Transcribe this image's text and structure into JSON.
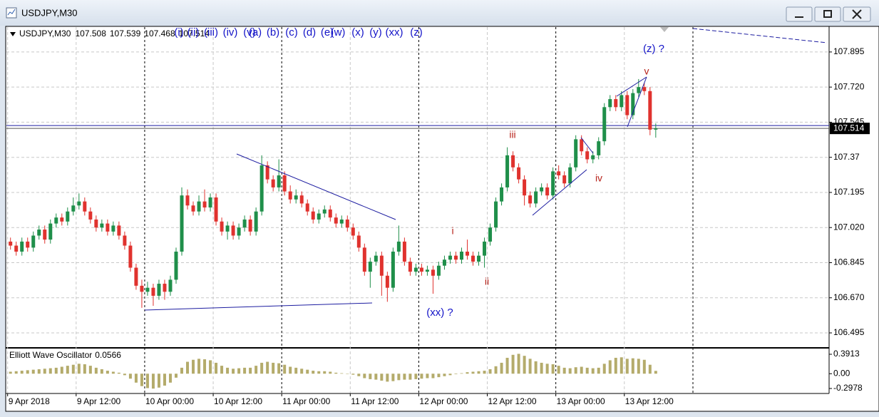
{
  "chart_data": {
    "type": "candlestick",
    "title": "USDJPY,M30",
    "up_color": "#1f8f4a",
    "down_color": "#e0322e",
    "categories": [
      "9 Apr 2018",
      null,
      null,
      null,
      null,
      null,
      null,
      null,
      null,
      null,
      null,
      null,
      "9 Apr 12:00",
      null,
      null,
      null,
      null,
      null,
      null,
      null,
      null,
      null,
      null,
      null,
      "10 Apr 00:00",
      null,
      null,
      null,
      null,
      null,
      null,
      null,
      null,
      null,
      null,
      null,
      "10 Apr 12:00",
      null,
      null,
      null,
      null,
      null,
      null,
      null,
      null,
      null,
      null,
      null,
      "11 Apr 00:00",
      null,
      null,
      null,
      null,
      null,
      null,
      null,
      null,
      null,
      null,
      null,
      "11 Apr 12:00",
      null,
      null,
      null,
      null,
      null,
      null,
      null,
      null,
      null,
      null,
      null,
      "12 Apr 00:00",
      null,
      null,
      null,
      null,
      null,
      null,
      null,
      null,
      null,
      null,
      null,
      "12 Apr 12:00",
      null,
      null,
      null,
      null,
      null,
      null,
      null,
      null,
      null,
      null,
      null,
      "13 Apr 00:00",
      null,
      null,
      null,
      null,
      null,
      null,
      null,
      null,
      null,
      null,
      null,
      "13 Apr 12:00",
      null,
      null,
      null,
      null,
      null
    ],
    "ohlc": [
      [
        106.95,
        106.97,
        106.91,
        106.93
      ],
      [
        106.93,
        106.95,
        106.88,
        106.9
      ],
      [
        106.9,
        106.97,
        106.88,
        106.95
      ],
      [
        106.95,
        106.97,
        106.9,
        106.92
      ],
      [
        106.92,
        107.0,
        106.9,
        106.98
      ],
      [
        106.98,
        107.03,
        106.96,
        107.01
      ],
      [
        107.01,
        107.03,
        106.94,
        106.96
      ],
      [
        106.96,
        107.06,
        106.94,
        107.04
      ],
      [
        107.04,
        107.09,
        107.02,
        107.07
      ],
      [
        107.07,
        107.09,
        107.03,
        107.05
      ],
      [
        107.05,
        107.12,
        107.03,
        107.1
      ],
      [
        107.1,
        107.17,
        107.08,
        107.13
      ],
      [
        107.13,
        107.19,
        107.11,
        107.15
      ],
      [
        107.15,
        107.17,
        107.08,
        107.1
      ],
      [
        107.1,
        107.12,
        107.04,
        107.06
      ],
      [
        107.06,
        107.08,
        107.0,
        107.02
      ],
      [
        107.02,
        107.06,
        107.0,
        107.04
      ],
      [
        107.04,
        107.06,
        106.98,
        107.0
      ],
      [
        107.0,
        107.05,
        106.98,
        107.03
      ],
      [
        107.03,
        107.05,
        106.96,
        106.98
      ],
      [
        106.98,
        107.0,
        106.91,
        106.93
      ],
      [
        106.93,
        106.95,
        106.8,
        106.82
      ],
      [
        106.82,
        106.84,
        106.71,
        106.73
      ],
      [
        106.73,
        106.76,
        106.62,
        106.7
      ],
      [
        106.7,
        106.75,
        106.68,
        106.72
      ],
      [
        106.72,
        106.74,
        106.63,
        106.68
      ],
      [
        106.68,
        106.76,
        106.66,
        106.74
      ],
      [
        106.74,
        106.76,
        106.66,
        106.7
      ],
      [
        106.7,
        106.78,
        106.68,
        106.76
      ],
      [
        106.76,
        106.92,
        106.74,
        106.9
      ],
      [
        106.9,
        107.22,
        106.88,
        107.18
      ],
      [
        107.18,
        107.21,
        107.11,
        107.13
      ],
      [
        107.13,
        107.15,
        107.08,
        107.1
      ],
      [
        107.1,
        107.18,
        107.08,
        107.15
      ],
      [
        107.15,
        107.21,
        107.1,
        107.12
      ],
      [
        107.12,
        107.19,
        107.1,
        107.17
      ],
      [
        107.17,
        107.19,
        107.03,
        107.05
      ],
      [
        107.05,
        107.07,
        106.98,
        107.0
      ],
      [
        107.0,
        107.05,
        106.96,
        107.03
      ],
      [
        107.03,
        107.05,
        106.96,
        106.98
      ],
      [
        106.98,
        107.04,
        106.96,
        107.02
      ],
      [
        107.02,
        107.08,
        107.0,
        107.06
      ],
      [
        107.06,
        107.08,
        106.98,
        107.0
      ],
      [
        107.0,
        107.12,
        106.98,
        107.1
      ],
      [
        107.1,
        107.38,
        107.08,
        107.33
      ],
      [
        107.33,
        107.35,
        107.24,
        107.26
      ],
      [
        107.26,
        107.28,
        107.2,
        107.22
      ],
      [
        107.22,
        107.36,
        107.2,
        107.28
      ],
      [
        107.28,
        107.3,
        107.18,
        107.2
      ],
      [
        107.2,
        107.23,
        107.14,
        107.16
      ],
      [
        107.16,
        107.21,
        107.14,
        107.18
      ],
      [
        107.18,
        107.2,
        107.12,
        107.14
      ],
      [
        107.14,
        107.16,
        107.08,
        107.1
      ],
      [
        107.1,
        107.12,
        107.04,
        107.06
      ],
      [
        107.06,
        107.11,
        107.04,
        107.09
      ],
      [
        107.09,
        107.13,
        107.07,
        107.11
      ],
      [
        107.11,
        107.13,
        107.05,
        107.07
      ],
      [
        107.07,
        107.09,
        107.02,
        107.04
      ],
      [
        107.04,
        107.08,
        107.02,
        107.06
      ],
      [
        107.06,
        107.08,
        107.0,
        107.02
      ],
      [
        107.02,
        107.04,
        106.96,
        106.98
      ],
      [
        106.98,
        107.0,
        106.9,
        106.92
      ],
      [
        106.92,
        106.94,
        106.78,
        106.8
      ],
      [
        106.8,
        106.87,
        106.72,
        106.85
      ],
      [
        106.85,
        106.9,
        106.83,
        106.88
      ],
      [
        106.88,
        106.9,
        106.68,
        106.78
      ],
      [
        106.78,
        106.8,
        106.65,
        106.72
      ],
      [
        106.72,
        106.92,
        106.7,
        106.9
      ],
      [
        106.9,
        107.03,
        106.88,
        106.95
      ],
      [
        106.95,
        106.97,
        106.83,
        106.85
      ],
      [
        106.85,
        106.87,
        106.78,
        106.8
      ],
      [
        106.8,
        106.84,
        106.78,
        106.82
      ],
      [
        106.82,
        106.84,
        106.78,
        106.8
      ],
      [
        106.8,
        106.83,
        106.78,
        106.81
      ],
      [
        106.81,
        106.83,
        106.69,
        106.78
      ],
      [
        106.78,
        106.85,
        106.76,
        106.83
      ],
      [
        106.83,
        106.88,
        106.81,
        106.86
      ],
      [
        106.86,
        106.9,
        106.84,
        106.88
      ],
      [
        106.88,
        106.9,
        106.84,
        106.86
      ],
      [
        106.86,
        106.92,
        106.84,
        106.9
      ],
      [
        106.9,
        106.96,
        106.86,
        106.88
      ],
      [
        106.88,
        106.9,
        106.83,
        106.85
      ],
      [
        106.85,
        106.9,
        106.83,
        106.88
      ],
      [
        106.88,
        106.97,
        106.82,
        106.95
      ],
      [
        106.95,
        107.04,
        106.93,
        107.02
      ],
      [
        107.02,
        107.17,
        107.0,
        107.15
      ],
      [
        107.15,
        107.24,
        107.13,
        107.22
      ],
      [
        107.22,
        107.42,
        107.2,
        107.38
      ],
      [
        107.38,
        107.4,
        107.3,
        107.32
      ],
      [
        107.32,
        107.34,
        107.24,
        107.26
      ],
      [
        107.26,
        107.28,
        107.13,
        107.18
      ],
      [
        107.18,
        107.2,
        107.12,
        107.14
      ],
      [
        107.14,
        107.22,
        107.12,
        107.2
      ],
      [
        107.2,
        107.24,
        107.18,
        107.22
      ],
      [
        107.22,
        107.24,
        107.16,
        107.18
      ],
      [
        107.18,
        107.32,
        107.16,
        107.3
      ],
      [
        107.3,
        107.33,
        107.26,
        107.28
      ],
      [
        107.28,
        107.3,
        107.22,
        107.24
      ],
      [
        107.24,
        107.34,
        107.22,
        107.32
      ],
      [
        107.32,
        107.48,
        107.3,
        107.46
      ],
      [
        107.46,
        107.48,
        107.38,
        107.4
      ],
      [
        107.4,
        107.42,
        107.34,
        107.36
      ],
      [
        107.36,
        107.4,
        107.34,
        107.38
      ],
      [
        107.38,
        107.47,
        107.36,
        107.45
      ],
      [
        107.45,
        107.64,
        107.43,
        107.62
      ],
      [
        107.62,
        107.68,
        107.6,
        107.66
      ],
      [
        107.66,
        107.68,
        107.6,
        107.62
      ],
      [
        107.62,
        107.7,
        107.6,
        107.68
      ],
      [
        107.68,
        107.7,
        107.56,
        107.58
      ],
      [
        107.58,
        107.71,
        107.56,
        107.69
      ],
      [
        107.69,
        107.76,
        107.67,
        107.72
      ],
      [
        107.72,
        107.74,
        107.68,
        107.7
      ],
      [
        107.7,
        107.72,
        107.48,
        107.508
      ],
      [
        107.508,
        107.539,
        107.468,
        107.514
      ]
    ],
    "ylim": [
      106.424,
      108.019
    ],
    "yticks": [
      107.895,
      {
        "value": 107.72,
        "label": "107.720"
      },
      107.545,
      107.37,
      107.195,
      {
        "value": 107.02,
        "label": "107.020"
      },
      106.845,
      {
        "value": 106.67,
        "label": "106.670"
      },
      106.495
    ],
    "grid": true,
    "wave_toolbar": [
      "(i)",
      "(ii)",
      "(iii)",
      "(iv)",
      "(v)",
      "(a)",
      "(b)",
      "(c)",
      "(d)",
      "(e)",
      "(w)",
      "(x)",
      "(y)",
      "(xx)",
      "(z)"
    ],
    "wave_labels": [
      "i",
      "ii",
      "iii",
      "iv",
      "v"
    ],
    "annotations": [
      "(xx) ?",
      "(z) ?"
    ],
    "indicator": {
      "type": "bar",
      "name": "Elliott Wave Oscillator",
      "color": "#b4ab6b",
      "values": [
        0.04,
        0.05,
        0.06,
        0.07,
        0.08,
        0.09,
        0.1,
        0.11,
        0.12,
        0.14,
        0.16,
        0.18,
        0.2,
        0.19,
        0.16,
        0.12,
        0.09,
        0.06,
        0.04,
        0.02,
        -0.03,
        -0.1,
        -0.18,
        -0.25,
        -0.29,
        -0.3,
        -0.28,
        -0.24,
        -0.18,
        -0.08,
        0.12,
        0.24,
        0.28,
        0.3,
        0.29,
        0.27,
        0.22,
        0.16,
        0.12,
        0.1,
        0.11,
        0.12,
        0.12,
        0.16,
        0.22,
        0.24,
        0.22,
        0.21,
        0.18,
        0.14,
        0.12,
        0.1,
        0.08,
        0.06,
        0.05,
        0.05,
        0.04,
        0.02,
        0.01,
        0.0,
        -0.02,
        -0.05,
        -0.09,
        -0.11,
        -0.12,
        -0.14,
        -0.16,
        -0.15,
        -0.13,
        -0.12,
        -0.12,
        -0.11,
        -0.1,
        -0.09,
        -0.09,
        -0.07,
        -0.05,
        -0.03,
        -0.01,
        0.01,
        0.03,
        0.04,
        0.05,
        0.06,
        0.09,
        0.15,
        0.22,
        0.32,
        0.38,
        0.4,
        0.36,
        0.3,
        0.25,
        0.22,
        0.2,
        0.19,
        0.16,
        0.12,
        0.11,
        0.13,
        0.14,
        0.12,
        0.11,
        0.12,
        0.2,
        0.27,
        0.32,
        0.33,
        0.3,
        0.31,
        0.3,
        0.28,
        0.18,
        0.0566
      ],
      "ylim": [
        -0.384,
        0.506
      ],
      "yticks": [
        0.3913,
        {
          "value": 0,
          "label": "0.00"
        },
        -0.2978
      ]
    }
  }
}
